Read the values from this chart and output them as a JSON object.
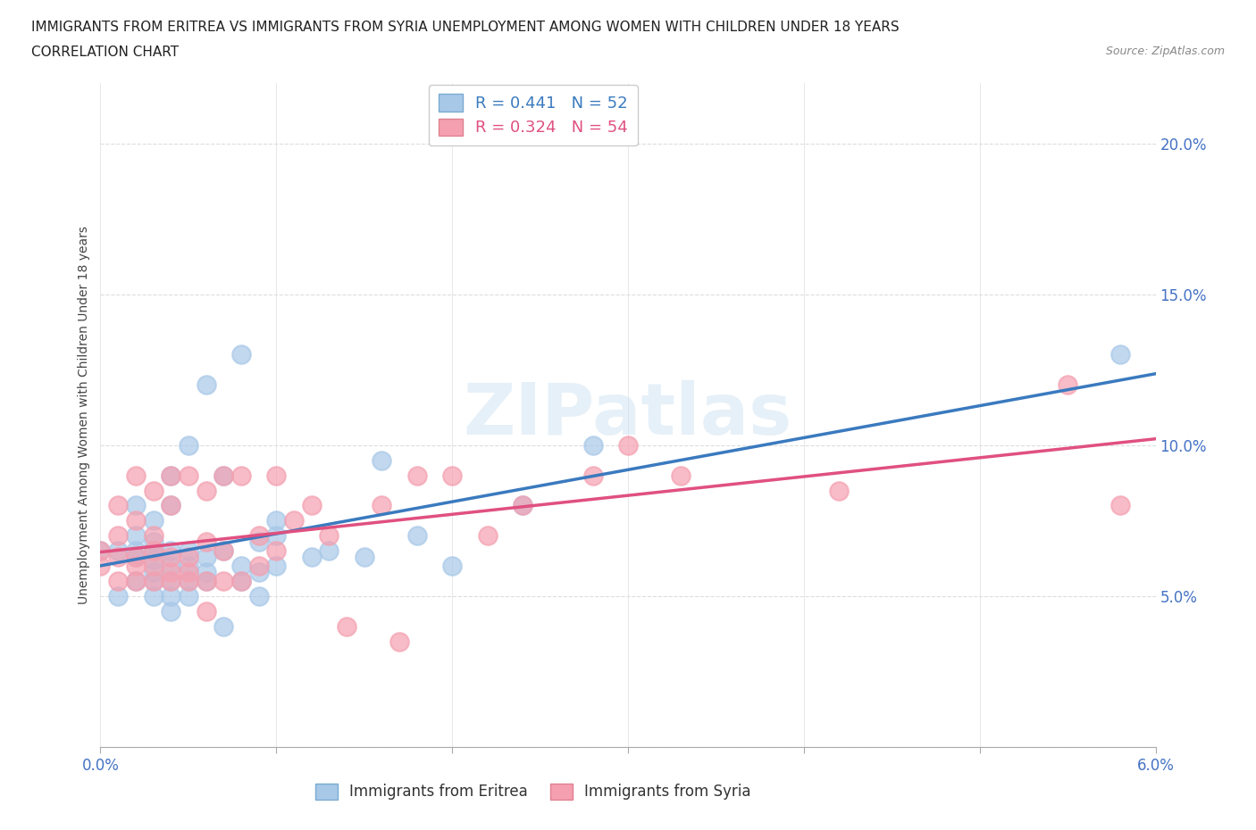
{
  "title_line1": "IMMIGRANTS FROM ERITREA VS IMMIGRANTS FROM SYRIA UNEMPLOYMENT AMONG WOMEN WITH CHILDREN UNDER 18 YEARS",
  "title_line2": "CORRELATION CHART",
  "source_text": "Source: ZipAtlas.com",
  "ylabel": "Unemployment Among Women with Children Under 18 years",
  "xlim": [
    0.0,
    0.06
  ],
  "ylim": [
    0.0,
    0.22
  ],
  "yticks": [
    0.0,
    0.05,
    0.1,
    0.15,
    0.2
  ],
  "ytick_labels": [
    "",
    "5.0%",
    "10.0%",
    "15.0%",
    "20.0%"
  ],
  "xticks": [
    0.0,
    0.01,
    0.02,
    0.03,
    0.04,
    0.05,
    0.06
  ],
  "legend_eritrea": "Immigrants from Eritrea",
  "legend_syria": "Immigrants from Syria",
  "R_eritrea": 0.441,
  "N_eritrea": 52,
  "R_syria": 0.324,
  "N_syria": 54,
  "color_eritrea": "#a8c8e8",
  "color_syria": "#f4a0b0",
  "line_color_eritrea": "#3a7abf",
  "line_color_syria": "#e05080",
  "watermark": "ZIPatlas",
  "background_color": "#ffffff",
  "grid_color": "#dddddd",
  "title_fontsize": 11,
  "eritrea_x": [
    0.0,
    0.001,
    0.001,
    0.002,
    0.002,
    0.002,
    0.002,
    0.002,
    0.003,
    0.003,
    0.003,
    0.003,
    0.003,
    0.003,
    0.003,
    0.004,
    0.004,
    0.004,
    0.004,
    0.004,
    0.004,
    0.004,
    0.005,
    0.005,
    0.005,
    0.005,
    0.005,
    0.006,
    0.006,
    0.006,
    0.006,
    0.007,
    0.007,
    0.007,
    0.008,
    0.008,
    0.008,
    0.009,
    0.009,
    0.009,
    0.01,
    0.01,
    0.01,
    0.012,
    0.013,
    0.015,
    0.016,
    0.018,
    0.02,
    0.024,
    0.028,
    0.058
  ],
  "eritrea_y": [
    0.065,
    0.05,
    0.065,
    0.055,
    0.063,
    0.065,
    0.07,
    0.08,
    0.05,
    0.055,
    0.058,
    0.062,
    0.065,
    0.068,
    0.075,
    0.045,
    0.05,
    0.055,
    0.06,
    0.065,
    0.08,
    0.09,
    0.05,
    0.055,
    0.06,
    0.065,
    0.1,
    0.055,
    0.058,
    0.063,
    0.12,
    0.04,
    0.065,
    0.09,
    0.055,
    0.06,
    0.13,
    0.05,
    0.058,
    0.068,
    0.06,
    0.07,
    0.075,
    0.063,
    0.065,
    0.063,
    0.095,
    0.07,
    0.06,
    0.08,
    0.1,
    0.13
  ],
  "syria_x": [
    0.0,
    0.0,
    0.001,
    0.001,
    0.001,
    0.001,
    0.002,
    0.002,
    0.002,
    0.002,
    0.002,
    0.003,
    0.003,
    0.003,
    0.003,
    0.003,
    0.004,
    0.004,
    0.004,
    0.004,
    0.004,
    0.005,
    0.005,
    0.005,
    0.005,
    0.006,
    0.006,
    0.006,
    0.006,
    0.007,
    0.007,
    0.007,
    0.008,
    0.008,
    0.009,
    0.009,
    0.01,
    0.01,
    0.011,
    0.012,
    0.013,
    0.014,
    0.016,
    0.017,
    0.018,
    0.02,
    0.022,
    0.024,
    0.028,
    0.03,
    0.033,
    0.042,
    0.055,
    0.058
  ],
  "syria_y": [
    0.06,
    0.065,
    0.055,
    0.063,
    0.07,
    0.08,
    0.055,
    0.06,
    0.063,
    0.075,
    0.09,
    0.055,
    0.06,
    0.065,
    0.07,
    0.085,
    0.055,
    0.058,
    0.063,
    0.08,
    0.09,
    0.055,
    0.058,
    0.063,
    0.09,
    0.045,
    0.055,
    0.068,
    0.085,
    0.055,
    0.065,
    0.09,
    0.055,
    0.09,
    0.06,
    0.07,
    0.065,
    0.09,
    0.075,
    0.08,
    0.07,
    0.04,
    0.08,
    0.035,
    0.09,
    0.09,
    0.07,
    0.08,
    0.09,
    0.1,
    0.09,
    0.085,
    0.12,
    0.08
  ]
}
